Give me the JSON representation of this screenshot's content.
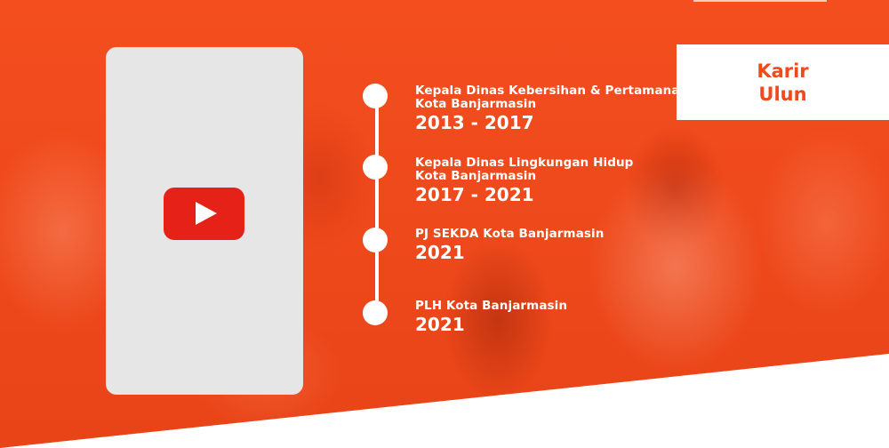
{
  "colors": {
    "brand_orange": "#f04a1c",
    "play_red": "#e62117",
    "card_gray": "#e6e6e6",
    "white": "#ffffff"
  },
  "video": {
    "play_icon": "youtube-play-icon"
  },
  "career_heading": "Karir\nUlun",
  "timeline": [
    {
      "title": "Kepala Dinas Kebersihan & Pertamanan\nKota Banjarmasin",
      "year": "2013 - 2017"
    },
    {
      "title": "Kepala Dinas Lingkungan Hidup\nKota Banjarmasin",
      "year": "2017 - 2021"
    },
    {
      "title": "PJ SEKDA Kota Banjarmasin",
      "year": "2021"
    },
    {
      "title": "PLH Kota Banjarmasin",
      "year": "2021"
    }
  ]
}
